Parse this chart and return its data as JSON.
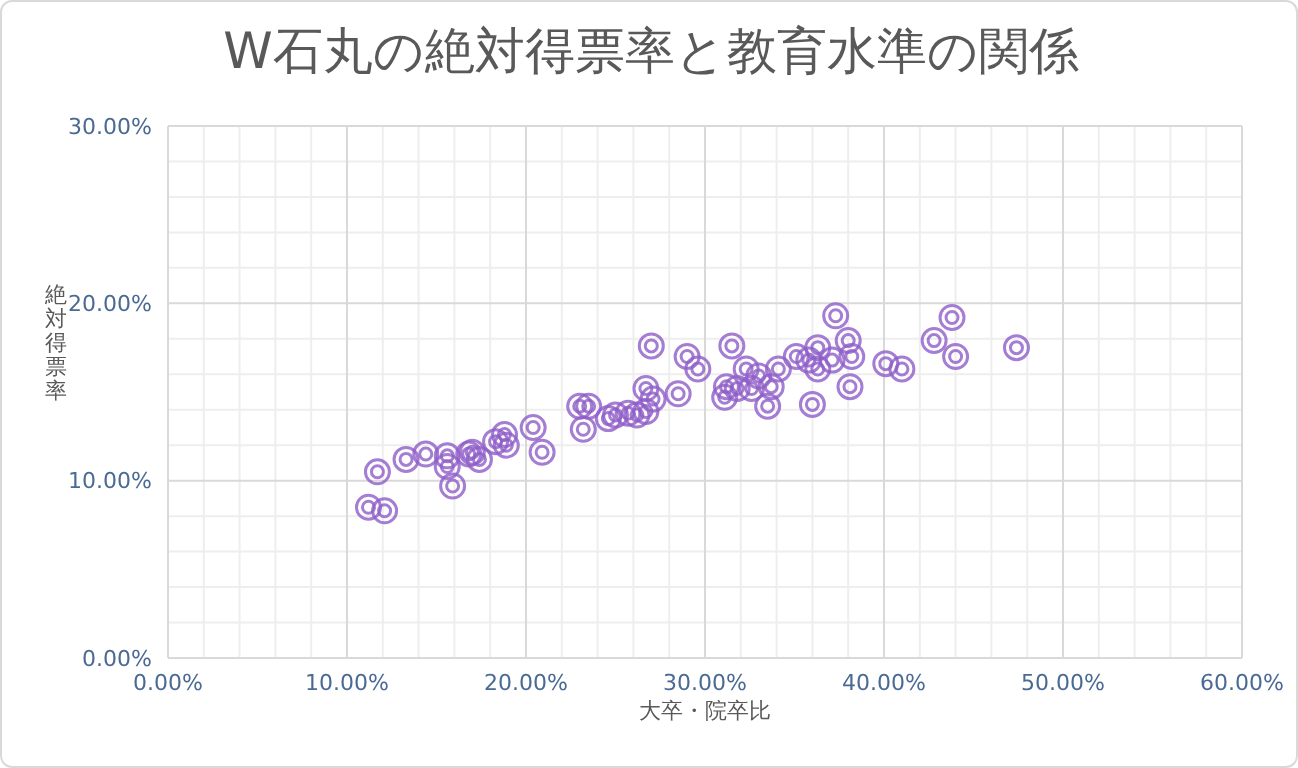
{
  "chart_data": {
    "type": "scatter",
    "title": "W石丸の絶対得票率と教育水準の関係",
    "xlabel": "大卒・院卒比",
    "ylabel": "絶対得票率",
    "xlim": [
      0,
      60
    ],
    "ylim": [
      0,
      30
    ],
    "xticks": [
      {
        "value": 0,
        "label": "0.00%"
      },
      {
        "value": 2,
        "label": null
      },
      {
        "value": 4,
        "label": null
      },
      {
        "value": 6,
        "label": null
      },
      {
        "value": 8,
        "label": null
      },
      {
        "value": 10,
        "label": "10.00%"
      },
      {
        "value": 12,
        "label": null
      },
      {
        "value": 14,
        "label": null
      },
      {
        "value": 16,
        "label": null
      },
      {
        "value": 18,
        "label": null
      },
      {
        "value": 20,
        "label": "20.00%"
      },
      {
        "value": 22,
        "label": null
      },
      {
        "value": 24,
        "label": null
      },
      {
        "value": 26,
        "label": null
      },
      {
        "value": 28,
        "label": null
      },
      {
        "value": 30,
        "label": "30.00%"
      },
      {
        "value": 32,
        "label": null
      },
      {
        "value": 34,
        "label": null
      },
      {
        "value": 36,
        "label": null
      },
      {
        "value": 38,
        "label": null
      },
      {
        "value": 40,
        "label": "40.00%"
      },
      {
        "value": 42,
        "label": null
      },
      {
        "value": 44,
        "label": null
      },
      {
        "value": 46,
        "label": null
      },
      {
        "value": 48,
        "label": null
      },
      {
        "value": 50,
        "label": "50.00%"
      },
      {
        "value": 52,
        "label": null
      },
      {
        "value": 54,
        "label": null
      },
      {
        "value": 56,
        "label": null
      },
      {
        "value": 58,
        "label": null
      },
      {
        "value": 60,
        "label": "60.00%"
      }
    ],
    "yticks": [
      {
        "value": 0,
        "label": "0.00%"
      },
      {
        "value": 2,
        "label": null
      },
      {
        "value": 4,
        "label": null
      },
      {
        "value": 6,
        "label": null
      },
      {
        "value": 8,
        "label": null
      },
      {
        "value": 10,
        "label": "10.00%"
      },
      {
        "value": 12,
        "label": null
      },
      {
        "value": 14,
        "label": null
      },
      {
        "value": 16,
        "label": null
      },
      {
        "value": 18,
        "label": null
      },
      {
        "value": 20,
        "label": "20.00%"
      },
      {
        "value": 22,
        "label": null
      },
      {
        "value": 24,
        "label": null
      },
      {
        "value": 26,
        "label": null
      },
      {
        "value": 28,
        "label": null
      },
      {
        "value": 30,
        "label": "30.00%"
      }
    ],
    "grid": true,
    "marker": "circle",
    "series": [
      {
        "color": "#8e5ec8",
        "x": [
          11.2,
          12.1,
          11.7,
          13.3,
          14.4,
          15.6,
          15.9,
          16.8,
          17.0,
          17.4,
          18.3,
          18.8,
          18.9,
          20.4,
          20.9,
          23.0,
          23.5,
          23.2,
          24.6,
          25.0,
          25.7,
          26.7,
          26.7,
          27.0,
          28.5,
          29.0,
          29.6,
          31.1,
          31.2,
          31.5,
          31.8,
          32.3,
          32.6,
          33.0,
          33.5,
          33.7,
          34.1,
          35.1,
          35.8,
          36.0,
          36.3,
          36.3,
          37.1,
          37.3,
          38.0,
          38.1,
          38.2,
          40.1,
          41.0,
          42.8,
          43.8,
          44.0,
          47.4,
          15.6,
          26.2,
          27.1
        ],
        "values": [
          8.5,
          8.3,
          10.5,
          11.2,
          11.5,
          11.4,
          9.7,
          11.5,
          11.6,
          11.2,
          12.2,
          12.6,
          12.0,
          13.0,
          11.6,
          14.2,
          14.2,
          12.9,
          13.5,
          13.7,
          13.8,
          13.9,
          15.2,
          17.6,
          14.9,
          17.0,
          16.3,
          14.7,
          15.3,
          17.6,
          15.2,
          16.3,
          15.2,
          15.9,
          14.2,
          15.3,
          16.3,
          17.0,
          16.8,
          14.3,
          17.5,
          16.3,
          16.8,
          19.3,
          17.9,
          15.3,
          17.0,
          16.6,
          16.3,
          17.9,
          19.2,
          17.0,
          17.5,
          10.8,
          13.7,
          14.6
        ]
      }
    ]
  }
}
